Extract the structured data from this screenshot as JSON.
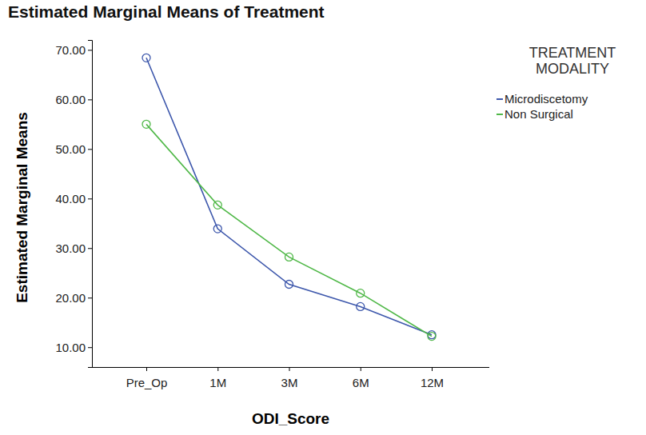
{
  "chart_data": {
    "type": "line",
    "title": "Estimated Marginal Means of Treatment",
    "x_label": "ODI_Score",
    "y_label": "Estimated Marginal Means",
    "legend_title": "TREATMENT MODALITY",
    "legend": "right",
    "grid": false,
    "marker": "circle",
    "categories": [
      "Pre_Op",
      "1M",
      "3M",
      "6M",
      "12M"
    ],
    "series": [
      {
        "name": "Microdiscetomy",
        "color": "#3e58ac",
        "values": [
          68.4,
          33.9,
          22.7,
          18.2,
          12.5
        ]
      },
      {
        "name": "Non Surgical",
        "color": "#50b848",
        "values": [
          55.0,
          38.7,
          28.2,
          20.9,
          12.2
        ]
      }
    ],
    "ylim": [
      6,
      72
    ],
    "yticks": [
      {
        "value": 10,
        "label": "10.00"
      },
      {
        "value": 20,
        "label": "20.00"
      },
      {
        "value": 30,
        "label": "30.00"
      },
      {
        "value": 40,
        "label": "40.00"
      },
      {
        "value": 50,
        "label": "50.00"
      },
      {
        "value": 60,
        "label": "60.00"
      },
      {
        "value": 70,
        "label": "70.00"
      }
    ]
  }
}
